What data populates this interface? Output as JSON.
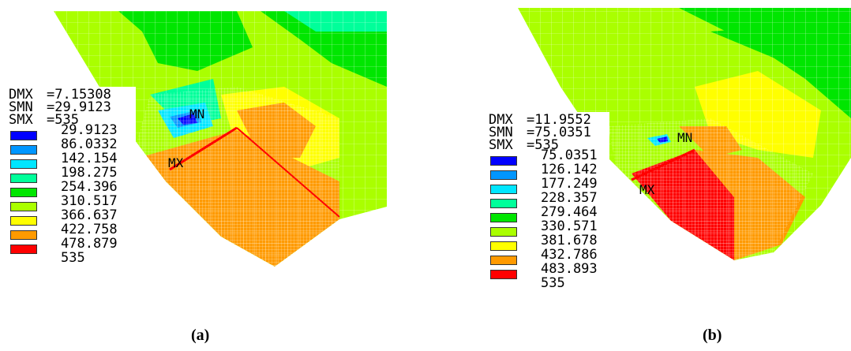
{
  "panels": [
    {
      "caption": "(a)",
      "dmx_label": "DMX",
      "dmx_value": "=7.15308",
      "smn_label": "SMN",
      "smn_value": "=29.9123",
      "smx_label": "SMX",
      "smx_value": "=535",
      "levels": [
        "29.9123",
        "86.0332",
        "142.154",
        "198.275",
        "254.396",
        "310.517",
        "366.637",
        "422.758",
        "478.879",
        "535"
      ],
      "mn_marker": "MN",
      "mx_marker": "MX"
    },
    {
      "caption": "(b)",
      "dmx_label": "DMX",
      "dmx_value": "=11.9552",
      "smn_label": "SMN",
      "smn_value": "=75.0351",
      "smx_label": "SMX",
      "smx_value": "=535",
      "levels": [
        "75.0351",
        "126.142",
        "177.249",
        "228.357",
        "279.464",
        "330.571",
        "381.678",
        "432.786",
        "483.893",
        "535"
      ],
      "mn_marker": "MN",
      "mx_marker": "MX"
    }
  ],
  "colors": {
    "scale": [
      "#0000ff",
      "#0096ff",
      "#00e6ff",
      "#00ff9a",
      "#00e600",
      "#aaff00",
      "#ffff00",
      "#ff9a00",
      "#ff0000"
    ],
    "mesh_line": "#ffffff"
  }
}
